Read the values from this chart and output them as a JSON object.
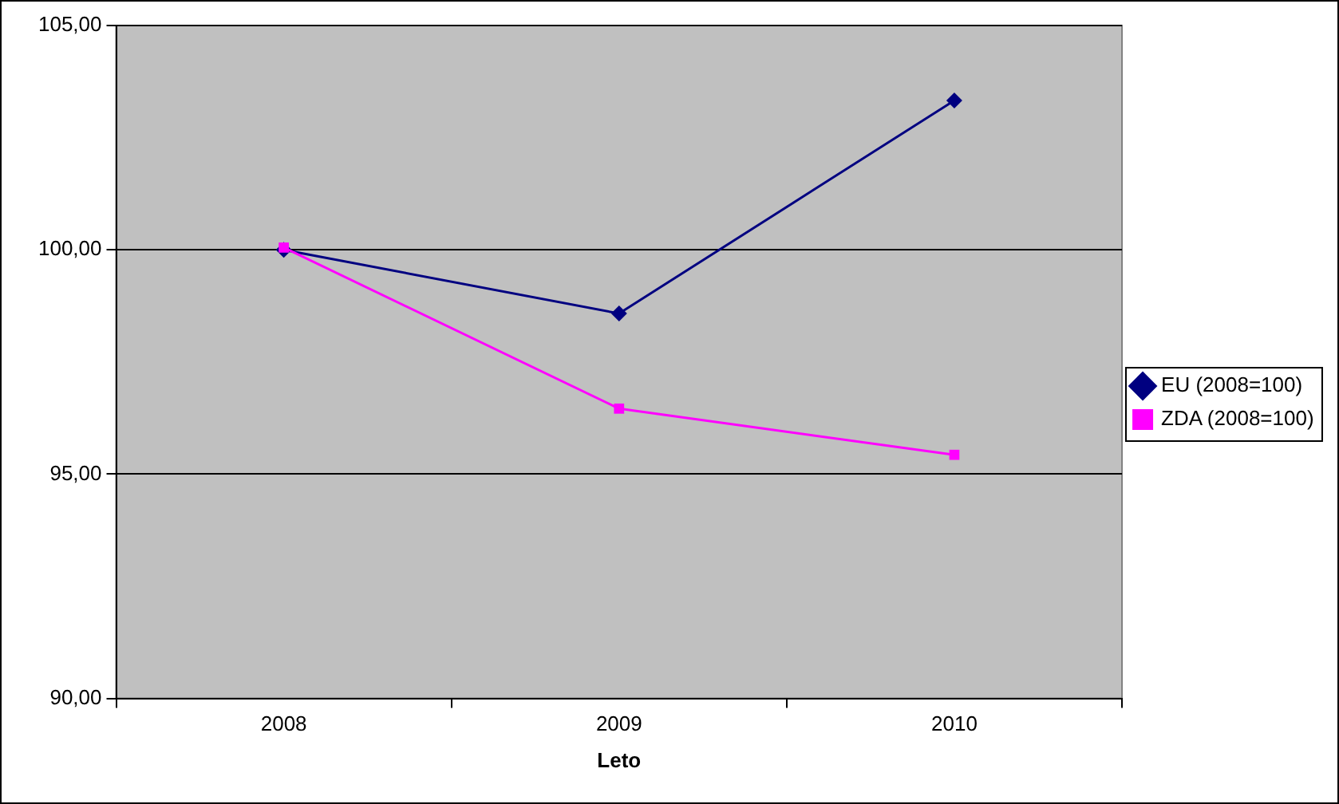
{
  "chart_data": {
    "type": "line",
    "xlabel": "Leto",
    "categories": [
      "2008",
      "2009",
      "2010"
    ],
    "series": [
      {
        "name": "EU (2008=100)",
        "color": "#000080",
        "marker": "diamond",
        "values": [
          100.0,
          98.58,
          103.33
        ]
      },
      {
        "name": "ZDA (2008=100)",
        "color": "#ff00ff",
        "marker": "square",
        "values": [
          100.05,
          96.46,
          95.43
        ]
      }
    ],
    "ylim": [
      90,
      105
    ],
    "yticks": [
      {
        "value": 90,
        "label": "90,00"
      },
      {
        "value": 95,
        "label": "95,00"
      },
      {
        "value": 100,
        "label": "100,00"
      },
      {
        "value": 105,
        "label": "105,00"
      }
    ],
    "grid": "y",
    "legend": "right"
  }
}
